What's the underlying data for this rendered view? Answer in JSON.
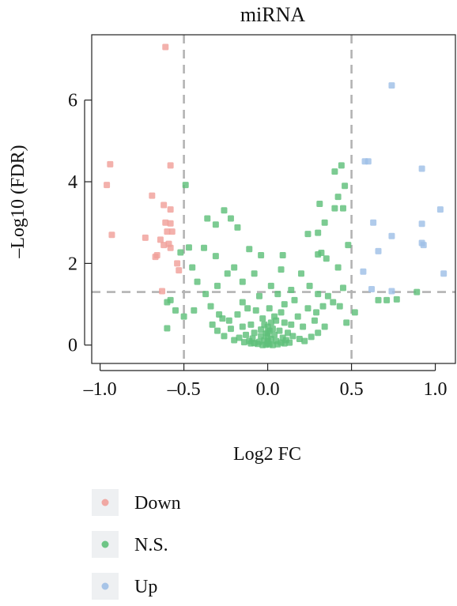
{
  "chart_data": {
    "type": "scatter",
    "title": "miRNA",
    "xlabel": "Log2 FC",
    "ylabel": "–Log10 (FDR)",
    "xlim": [
      -1.05,
      1.12
    ],
    "ylim": [
      -0.45,
      7.6
    ],
    "xticks": [
      -1.0,
      -0.5,
      0.0,
      0.5,
      1.0
    ],
    "xtick_labels": [
      "–1.0",
      "–0.5",
      "0.0",
      "0.5",
      "1.0"
    ],
    "yticks": [
      0,
      2,
      4,
      6
    ],
    "ytick_labels": [
      "0",
      "2",
      "4",
      "6"
    ],
    "thresholds": {
      "vlines": [
        -0.5,
        0.5
      ],
      "hline": 1.3,
      "style": "dashed",
      "color": "#b3b3b3"
    },
    "grid": false,
    "legend": {
      "position": "bottom-left",
      "entries": [
        "Down",
        "N.S.",
        "Up"
      ]
    },
    "series": [
      {
        "name": "Down",
        "color": "#f0a09a",
        "points": [
          [
            -0.61,
            7.3
          ],
          [
            -0.94,
            4.43
          ],
          [
            -0.58,
            4.4
          ],
          [
            -0.96,
            3.92
          ],
          [
            -0.69,
            3.66
          ],
          [
            -0.62,
            3.43
          ],
          [
            -0.58,
            3.32
          ],
          [
            -0.61,
            3.0
          ],
          [
            -0.58,
            2.98
          ],
          [
            -0.93,
            2.7
          ],
          [
            -0.73,
            2.63
          ],
          [
            -0.6,
            2.78
          ],
          [
            -0.57,
            2.78
          ],
          [
            -0.64,
            2.58
          ],
          [
            -0.59,
            2.48
          ],
          [
            -0.62,
            2.45
          ],
          [
            -0.58,
            2.38
          ],
          [
            -0.66,
            2.2
          ],
          [
            -0.67,
            2.16
          ],
          [
            -0.54,
            2.0
          ],
          [
            -0.53,
            1.83
          ],
          [
            -0.63,
            1.32
          ]
        ]
      },
      {
        "name": "N.S.",
        "color": "#5fc07a",
        "points": [
          [
            -0.49,
            3.92
          ],
          [
            -0.36,
            3.1
          ],
          [
            -0.26,
            3.3
          ],
          [
            -0.31,
            2.95
          ],
          [
            -0.22,
            3.1
          ],
          [
            -0.18,
            2.88
          ],
          [
            -0.11,
            2.35
          ],
          [
            -0.04,
            2.2
          ],
          [
            -0.38,
            2.38
          ],
          [
            -0.31,
            2.18
          ],
          [
            -0.24,
            1.75
          ],
          [
            -0.47,
            2.39
          ],
          [
            -0.52,
            2.27
          ],
          [
            -0.58,
            1.1
          ],
          [
            -0.6,
            1.05
          ],
          [
            -0.6,
            0.41
          ],
          [
            -0.45,
            1.9
          ],
          [
            -0.42,
            1.55
          ],
          [
            -0.37,
            1.25
          ],
          [
            -0.3,
            1.45
          ],
          [
            -0.2,
            1.9
          ],
          [
            -0.15,
            1.55
          ],
          [
            -0.08,
            1.75
          ],
          [
            0.08,
            1.85
          ],
          [
            0.2,
            1.75
          ],
          [
            0.25,
            1.45
          ],
          [
            0.3,
            1.25
          ],
          [
            0.36,
            1.2
          ],
          [
            0.39,
            1.05
          ],
          [
            0.43,
            0.95
          ],
          [
            0.44,
            4.4
          ],
          [
            0.4,
            4.25
          ],
          [
            0.46,
            3.9
          ],
          [
            0.42,
            3.63
          ],
          [
            0.4,
            3.35
          ],
          [
            0.31,
            3.46
          ],
          [
            0.3,
            2.75
          ],
          [
            0.24,
            2.72
          ],
          [
            0.34,
            3.0
          ],
          [
            0.45,
            3.35
          ],
          [
            0.32,
            2.26
          ],
          [
            0.3,
            2.22
          ],
          [
            0.35,
            2.12
          ],
          [
            0.48,
            2.45
          ],
          [
            0.42,
            1.9
          ],
          [
            0.45,
            1.4
          ],
          [
            0.09,
            2.2
          ],
          [
            0.14,
            1.35
          ],
          [
            0.66,
            1.1
          ],
          [
            0.71,
            1.1
          ],
          [
            0.77,
            1.12
          ],
          [
            0.89,
            1.3
          ],
          [
            -0.55,
            0.85
          ],
          [
            -0.5,
            0.7
          ],
          [
            -0.44,
            0.85
          ],
          [
            -0.34,
            0.95
          ],
          [
            0.52,
            0.8
          ],
          [
            0.47,
            0.55
          ],
          [
            0.33,
            0.95
          ],
          [
            0.29,
            0.8
          ],
          [
            0.24,
            0.9
          ],
          [
            0.16,
            1.1
          ],
          [
            -0.15,
            1.05
          ],
          [
            -0.12,
            0.9
          ],
          [
            -0.23,
            0.6
          ],
          [
            -0.29,
            0.75
          ],
          [
            0.02,
            1.45
          ],
          [
            0.06,
            1.25
          ],
          [
            0.1,
            1.0
          ],
          [
            -0.05,
            1.2
          ],
          [
            0.01,
            0.9
          ],
          [
            0.08,
            0.8
          ],
          [
            -0.07,
            0.85
          ],
          [
            0.04,
            0.7
          ],
          [
            -0.03,
            0.65
          ],
          [
            0.02,
            0.55
          ],
          [
            0.05,
            0.6
          ],
          [
            -0.02,
            0.5
          ],
          [
            0.1,
            0.55
          ],
          [
            -0.1,
            0.5
          ],
          [
            0.0,
            0.45
          ],
          [
            0.03,
            0.4
          ],
          [
            -0.04,
            0.38
          ],
          [
            0.07,
            0.35
          ],
          [
            -0.08,
            0.3
          ],
          [
            0.12,
            0.3
          ],
          [
            -0.13,
            0.25
          ],
          [
            0.15,
            0.22
          ],
          [
            -0.17,
            0.18
          ],
          [
            0.19,
            0.15
          ],
          [
            -0.2,
            0.12
          ],
          [
            0.22,
            0.1
          ],
          [
            0.0,
            0.2
          ],
          [
            0.02,
            0.15
          ],
          [
            -0.02,
            0.12
          ],
          [
            0.05,
            0.1
          ],
          [
            -0.05,
            0.08
          ],
          [
            0.08,
            0.06
          ],
          [
            -0.08,
            0.05
          ],
          [
            0.0,
            0.05
          ],
          [
            0.01,
            0.02
          ],
          [
            -0.01,
            0.01
          ],
          [
            0.03,
            0.0
          ],
          [
            -0.03,
            0.0
          ],
          [
            0.06,
            0.02
          ],
          [
            -0.06,
            0.03
          ],
          [
            0.1,
            0.04
          ],
          [
            -0.1,
            0.04
          ],
          [
            0.13,
            0.06
          ],
          [
            -0.14,
            0.07
          ],
          [
            0.26,
            0.2
          ],
          [
            -0.26,
            0.22
          ],
          [
            0.3,
            0.3
          ],
          [
            -0.3,
            0.35
          ],
          [
            0.34,
            0.45
          ],
          [
            -0.33,
            0.5
          ],
          [
            0.28,
            0.6
          ],
          [
            -0.27,
            0.65
          ],
          [
            0.18,
            0.7
          ],
          [
            -0.18,
            0.75
          ],
          [
            0.21,
            0.45
          ],
          [
            -0.22,
            0.4
          ],
          [
            0.14,
            0.5
          ],
          [
            -0.15,
            0.45
          ],
          [
            0.0,
            0.3
          ],
          [
            0.04,
            0.25
          ],
          [
            -0.04,
            0.22
          ],
          [
            0.09,
            0.18
          ],
          [
            -0.09,
            0.16
          ],
          [
            0.11,
            0.12
          ],
          [
            -0.11,
            0.1
          ],
          [
            0.0,
            0.1
          ],
          [
            0.01,
            0.35
          ],
          [
            -0.01,
            0.28
          ]
        ]
      },
      {
        "name": "Up",
        "color": "#9fbfe6",
        "points": [
          [
            0.74,
            6.36
          ],
          [
            0.58,
            4.5
          ],
          [
            0.6,
            4.5
          ],
          [
            0.92,
            4.32
          ],
          [
            1.03,
            3.32
          ],
          [
            0.63,
            3.0
          ],
          [
            0.92,
            2.97
          ],
          [
            0.74,
            2.67
          ],
          [
            0.92,
            2.5
          ],
          [
            0.93,
            2.45
          ],
          [
            0.66,
            2.3
          ],
          [
            0.57,
            1.8
          ],
          [
            1.05,
            1.75
          ],
          [
            0.62,
            1.37
          ],
          [
            0.74,
            1.32
          ]
        ]
      }
    ]
  }
}
